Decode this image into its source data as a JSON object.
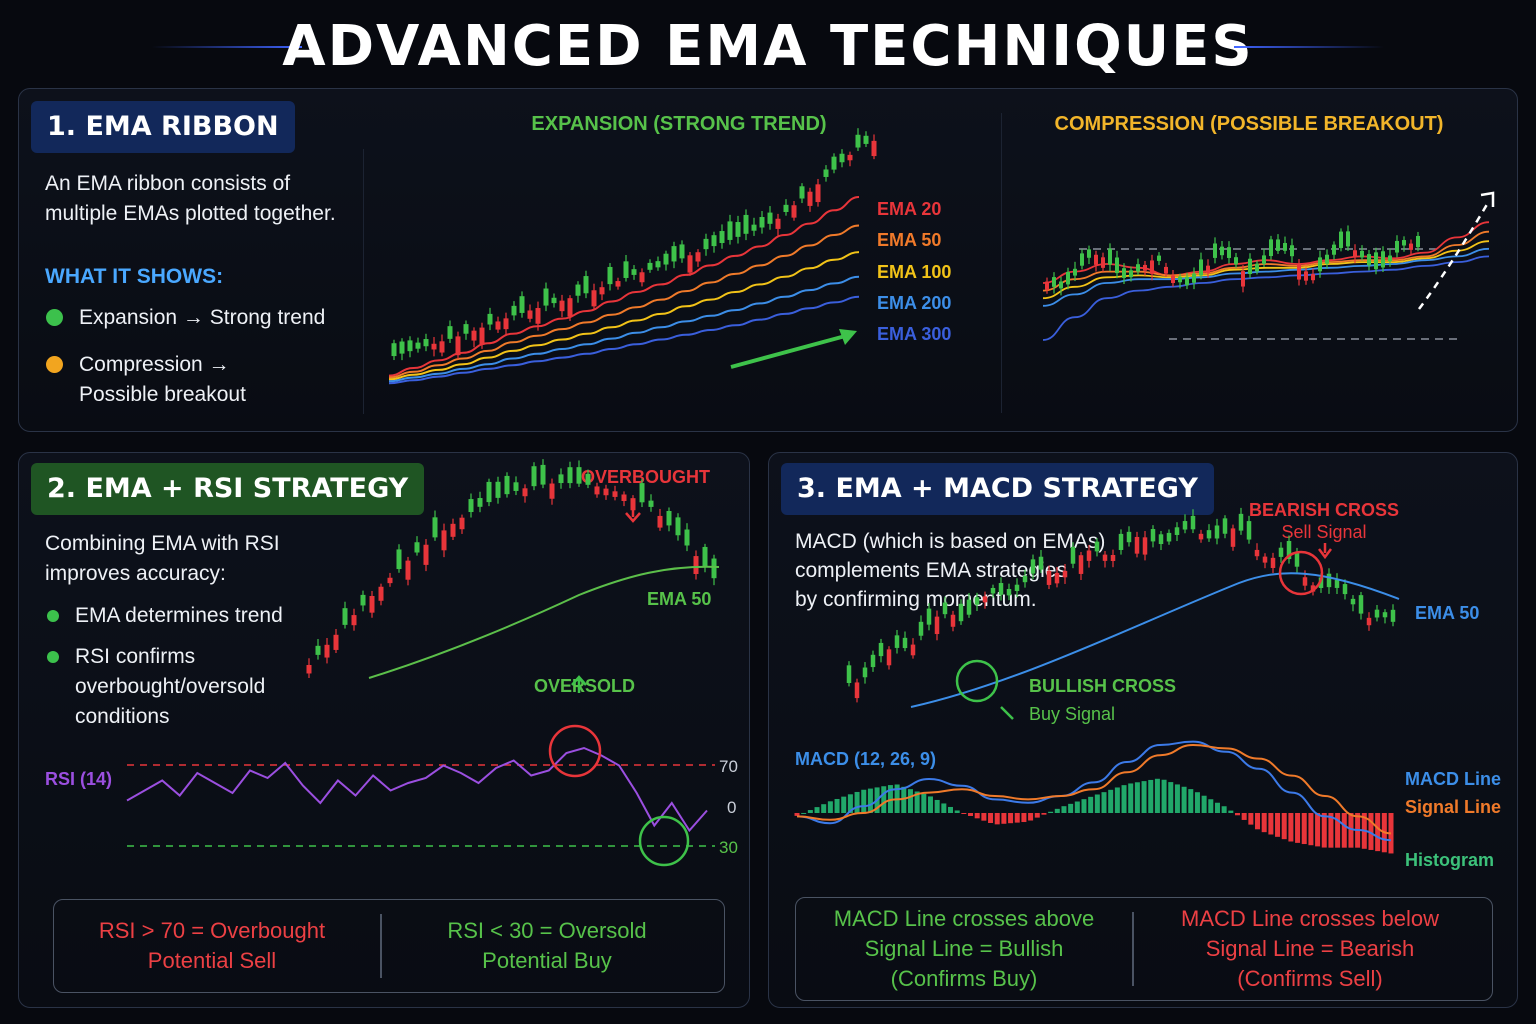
{
  "title": "ADVANCED EMA TECHNIQUES",
  "colors": {
    "bull": "#3ec24a",
    "bear": "#e8353a",
    "ema20": "#e8353a",
    "ema50": "#f07a2a",
    "ema100": "#f2c318",
    "ema200": "#3c8ee8",
    "ema300": "#3a5fdc",
    "rsi": "#9b4fe0",
    "macd": "#3c7ae8",
    "signal": "#f07a2a"
  },
  "panel1": {
    "badge": "1. EMA RIBBON",
    "desc_line1": "An EMA ribbon consists of",
    "desc_line2": "multiple EMAs plotted together.",
    "what_it_shows": "WHAT IT SHOWS:",
    "bullet1": "Expansion → Strong trend",
    "bullet2_line1": "Compression →",
    "bullet2_line2": "Possible breakout",
    "expansion_title": "EXPANSION (STRONG TREND)",
    "compression_title": "COMPRESSION (POSSIBLE BREAKOUT)"
  },
  "panel2": {
    "badge": "2. EMA + RSI STRATEGY",
    "desc_line1": "Combining EMA with RSI",
    "desc_line2": "improves accuracy:",
    "bullet1": "EMA determines trend",
    "bullet2_line1": "RSI confirms",
    "bullet2_line2": "overbought/oversold",
    "bullet2_line3": "conditions",
    "overbought": "OVERBOUGHT",
    "oversold": "OVERSOLD",
    "rsi_label": "RSI (14)",
    "ema_label": "EMA 50",
    "level_70": "70",
    "level_0": "0",
    "level_30": "30",
    "rule_left_1": "RSI > 70 = Overbought",
    "rule_left_2": "Potential Sell",
    "rule_right_1": "RSI < 30 = Oversold",
    "rule_right_2": "Potential Buy"
  },
  "panel3": {
    "badge": "3. EMA + MACD STRATEGY",
    "desc_line1": "MACD (which is based on EMAs)",
    "desc_line2": "complements EMA strategies",
    "desc_line3": "by confirming momentum.",
    "bearish_1": "BEARISH CROSS",
    "bearish_2": "Sell Signal",
    "bullish_1": "BULLISH CROSS",
    "bullish_2": "Buy Signal",
    "ema_label": "EMA 50",
    "macd_title": "MACD (12, 26, 9)",
    "macd_line": "MACD Line",
    "signal_line": "Signal Line",
    "histogram": "Histogram",
    "rule_left_1": "MACD Line crosses above",
    "rule_left_2": "Signal Line = Bullish",
    "rule_left_3": "(Confirms Buy)",
    "rule_right_1": "MACD Line crosses below",
    "rule_right_2": "Signal Line = Bearish",
    "rule_right_3": "(Confirms Sell)"
  },
  "chart_data": [
    {
      "type": "line",
      "title": "EXPANSION (STRONG TREND)",
      "series": [
        {
          "name": "EMA 20",
          "values": [
            12,
            20,
            28,
            36,
            46,
            56,
            64,
            72,
            80,
            90,
            100,
            108,
            118,
            128,
            138,
            148,
            160,
            172,
            186,
            200
          ]
        },
        {
          "name": "EMA 50",
          "values": [
            10,
            16,
            23,
            30,
            38,
            47,
            54,
            61,
            68,
            76,
            84,
            92,
            101,
            110,
            119,
            128,
            138,
            149,
            160,
            170
          ]
        },
        {
          "name": "EMA 100",
          "values": [
            8,
            13,
            18,
            24,
            31,
            38,
            44,
            50,
            56,
            63,
            70,
            77,
            85,
            92,
            100,
            108,
            116,
            125,
            134,
            142
          ]
        },
        {
          "name": "EMA 200",
          "values": [
            6,
            10,
            14,
            19,
            24,
            30,
            35,
            40,
            45,
            51,
            57,
            63,
            69,
            75,
            81,
            88,
            95,
            102,
            109,
            116
          ]
        },
        {
          "name": "EMA 300",
          "values": [
            4,
            7,
            11,
            15,
            19,
            23,
            27,
            31,
            35,
            40,
            45,
            50,
            55,
            60,
            65,
            71,
            77,
            83,
            89,
            95
          ]
        }
      ]
    },
    {
      "type": "line",
      "title": "COMPRESSION (POSSIBLE BREAKOUT)",
      "series": [
        {
          "name": "EMA 20",
          "values": [
            40,
            46,
            50,
            48,
            44,
            46,
            50,
            52,
            50,
            52,
            54,
            53,
            56,
            64,
            72
          ]
        },
        {
          "name": "EMA 50",
          "values": [
            36,
            42,
            46,
            46,
            44,
            45,
            48,
            50,
            49,
            51,
            52,
            52,
            54,
            60,
            67
          ]
        },
        {
          "name": "EMA 100",
          "values": [
            32,
            38,
            43,
            44,
            43,
            44,
            47,
            48,
            48,
            50,
            51,
            51,
            53,
            57,
            62
          ]
        },
        {
          "name": "EMA 200",
          "values": [
            28,
            34,
            40,
            42,
            42,
            43,
            45,
            46,
            47,
            48,
            49,
            50,
            52,
            54,
            58
          ]
        },
        {
          "name": "EMA 300",
          "values": [
            10,
            22,
            32,
            36,
            38,
            40,
            42,
            43,
            44,
            45,
            46,
            47,
            49,
            51,
            54
          ]
        }
      ]
    },
    {
      "type": "line",
      "title": "RSI (14)",
      "y_ticks": [
        "70",
        "0",
        "30"
      ],
      "series": [
        {
          "name": "RSI (14)",
          "values": [
            42,
            50,
            58,
            46,
            64,
            56,
            48,
            66,
            60,
            72,
            54,
            40,
            58,
            46,
            62,
            50,
            56,
            60,
            70,
            64,
            56,
            68,
            74,
            62,
            66,
            80,
            84,
            78,
            70,
            48,
            22,
            40,
            18,
            34
          ]
        }
      ]
    },
    {
      "type": "line",
      "title": "MACD (12, 26, 9)",
      "series": [
        {
          "name": "MACD Line",
          "values": [
            -2,
            -6,
            4,
            14,
            20,
            16,
            8,
            6,
            10,
            18,
            30,
            40,
            42,
            36,
            26,
            12,
            -2,
            -10,
            -16
          ]
        },
        {
          "name": "Signal Line",
          "values": [
            -2,
            -4,
            0,
            8,
            12,
            14,
            10,
            8,
            10,
            14,
            24,
            34,
            40,
            38,
            32,
            22,
            10,
            -2,
            -12
          ]
        },
        {
          "name": "Histogram",
          "values": [
            -1,
            4,
            8,
            10,
            6,
            0,
            -4,
            -3,
            2,
            6,
            10,
            12,
            8,
            2,
            -6,
            -10,
            -12,
            -12,
            -14
          ]
        }
      ]
    }
  ]
}
